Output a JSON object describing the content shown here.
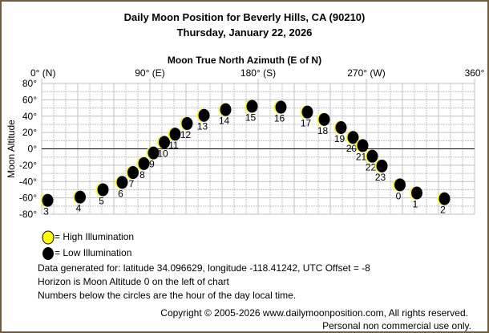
{
  "header": {
    "title": "Daily Moon Position for Beverly Hills, CA (90210)",
    "date": "Thursday, January 22, 2026"
  },
  "chart_data": {
    "type": "scatter",
    "title": "Moon True North Azimuth (E of N)",
    "xlabel": "Moon True North Azimuth (E of N)",
    "ylabel": "Moon Altitude",
    "xlim": [
      0,
      360
    ],
    "ylim": [
      -80,
      80
    ],
    "x_ticks": [
      {
        "v": 0,
        "label": "0° (N)"
      },
      {
        "v": 90,
        "label": "90° (E)"
      },
      {
        "v": 180,
        "label": "180° (S)"
      },
      {
        "v": 270,
        "label": "270° (W)"
      },
      {
        "v": 360,
        "label": "360°"
      }
    ],
    "y_ticks": [
      {
        "v": 80,
        "label": "80°"
      },
      {
        "v": 60,
        "label": "60°"
      },
      {
        "v": 40,
        "label": "40°"
      },
      {
        "v": 20,
        "label": "20°"
      },
      {
        "v": 0,
        "label": "0°"
      },
      {
        "v": -20,
        "label": "-20°"
      },
      {
        "v": -40,
        "label": "-40°"
      },
      {
        "v": -60,
        "label": "-60°"
      },
      {
        "v": -80,
        "label": "-80°"
      }
    ],
    "grid": true,
    "points": [
      {
        "hour": "3",
        "az": 5,
        "alt": -63
      },
      {
        "hour": "4",
        "az": 32,
        "alt": -59
      },
      {
        "hour": "5",
        "az": 51,
        "alt": -50
      },
      {
        "hour": "6",
        "az": 67,
        "alt": -41
      },
      {
        "hour": "7",
        "az": 76,
        "alt": -29
      },
      {
        "hour": "8",
        "az": 85,
        "alt": -18
      },
      {
        "hour": "9",
        "az": 93,
        "alt": -5
      },
      {
        "hour": "10",
        "az": 102,
        "alt": 8
      },
      {
        "hour": "11",
        "az": 111,
        "alt": 18
      },
      {
        "hour": "12",
        "az": 121,
        "alt": 31
      },
      {
        "hour": "13",
        "az": 135,
        "alt": 41
      },
      {
        "hour": "14",
        "az": 153,
        "alt": 48
      },
      {
        "hour": "15",
        "az": 175,
        "alt": 52
      },
      {
        "hour": "16",
        "az": 199,
        "alt": 51
      },
      {
        "hour": "17",
        "az": 221,
        "alt": 45
      },
      {
        "hour": "18",
        "az": 235,
        "alt": 36
      },
      {
        "hour": "19",
        "az": 249,
        "alt": 26
      },
      {
        "hour": "20",
        "az": 259,
        "alt": 14
      },
      {
        "hour": "21",
        "az": 267,
        "alt": 4
      },
      {
        "hour": "22",
        "az": 275,
        "alt": -9
      },
      {
        "hour": "23",
        "az": 283,
        "alt": -21
      },
      {
        "hour": "0",
        "az": 298,
        "alt": -44
      },
      {
        "hour": "1",
        "az": 312,
        "alt": -54
      },
      {
        "hour": "2",
        "az": 335,
        "alt": -61
      }
    ],
    "colors": {
      "high": "#ffff00",
      "low": "#000000",
      "grid": "#c0c0c0"
    }
  },
  "legend": {
    "high": "= High Illumination",
    "low": "= Low Illumination"
  },
  "notes": [
    "Data generated for: latitude 34.096629, longitude -118.41242, UTC Offset = -8",
    "Horizon is Moon Altitude 0 on the left of chart",
    "Numbers below the circles are the hour of the day local time."
  ],
  "footer": {
    "copyright": "Copyright © 2005-2026 www.dailymoonposition.com, All rights reserved.",
    "usage": "Personal non commercial use only."
  }
}
